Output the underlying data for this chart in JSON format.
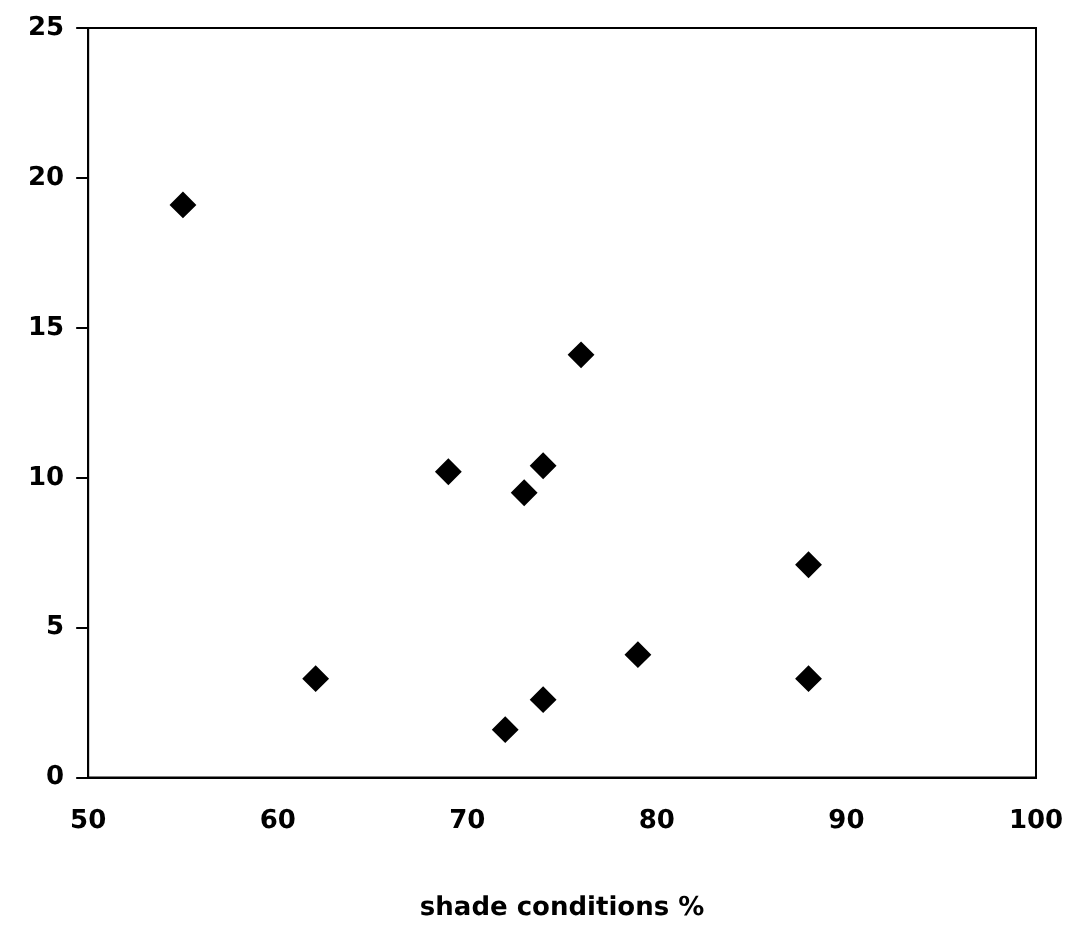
{
  "chart_data": {
    "type": "scatter",
    "xlabel": "shade conditions %",
    "x": [
      55,
      62,
      69,
      72,
      73,
      74,
      74,
      76,
      79,
      88,
      88
    ],
    "series": [
      {
        "color": "#000000",
        "values": [
          19.1,
          3.3,
          10.2,
          1.6,
          9.5,
          10.4,
          2.6,
          14.1,
          4.1,
          7.1,
          3.3
        ]
      }
    ],
    "xlim": [
      50,
      100
    ],
    "xticks": [
      50,
      60,
      70,
      80,
      90,
      100
    ],
    "ylim": [
      0,
      25
    ],
    "yticks": [
      0,
      5,
      10,
      15,
      20,
      25
    ],
    "grid": false,
    "legend": false,
    "marker": "diamond"
  }
}
